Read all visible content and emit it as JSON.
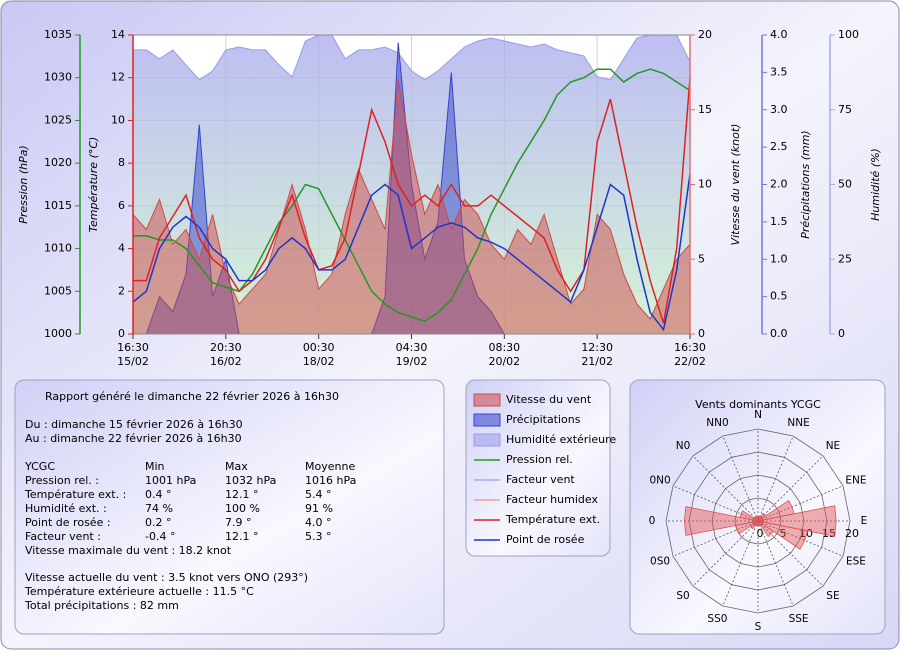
{
  "chart_data": [
    {
      "type": "multiaxis",
      "x": [
        "15/02 16:30",
        "15/02 20:30",
        "16/02 00:30",
        "16/02 04:30",
        "16/02 08:30",
        "16/02 12:30",
        "16/02 16:30",
        "16/02 20:30",
        "17/02 00:30",
        "17/02 04:30",
        "17/02 08:30",
        "17/02 12:30",
        "17/02 16:30",
        "17/02 20:30",
        "18/02 00:30",
        "18/02 04:30",
        "18/02 08:30",
        "18/02 12:30",
        "18/02 16:30",
        "18/02 20:30",
        "19/02 00:30",
        "19/02 04:30",
        "19/02 08:30",
        "19/02 12:30",
        "19/02 16:30",
        "19/02 20:30",
        "20/02 00:30",
        "20/02 04:30",
        "20/02 08:30",
        "20/02 12:30",
        "20/02 16:30",
        "20/02 20:30",
        "21/02 00:30",
        "21/02 04:30",
        "21/02 08:30",
        "21/02 12:30",
        "21/02 16:30",
        "21/02 20:30",
        "22/02 00:30",
        "22/02 04:30",
        "22/02 08:30",
        "22/02 12:30",
        "22/02 16:30"
      ],
      "xticks": [
        {
          "time": "16:30",
          "date": "15/02"
        },
        {
          "time": "20:30",
          "date": "16/02"
        },
        {
          "time": "00:30",
          "date": "18/02"
        },
        {
          "time": "04:30",
          "date": "19/02"
        },
        {
          "time": "08:30",
          "date": "20/02"
        },
        {
          "time": "12:30",
          "date": "21/02"
        },
        {
          "time": "16:30",
          "date": "22/02"
        }
      ],
      "grid": true,
      "axes": [
        {
          "label": "Pression (hPa)",
          "color": "#229922",
          "lim": [
            1000,
            1035
          ],
          "ticks": [
            1000,
            1005,
            1010,
            1015,
            1020,
            1025,
            1030,
            1035
          ]
        },
        {
          "label": "Température (°C)",
          "color": "#dd2222",
          "lim": [
            0,
            14
          ],
          "ticks": [
            0,
            2,
            4,
            6,
            8,
            10,
            12,
            14
          ]
        },
        {
          "label": "Vitesse du vent (knot)",
          "color": "#e07070",
          "lim": [
            0,
            20
          ],
          "ticks": [
            0,
            5,
            10,
            15,
            20
          ]
        },
        {
          "label": "Précipitations (mm)",
          "color": "#7777dd",
          "lim": [
            0,
            4
          ],
          "ticks": [
            {
              "value": 0,
              "label": "0.0"
            },
            {
              "value": 0.5,
              "label": "0.5"
            },
            {
              "value": 1,
              "label": "1.0"
            },
            {
              "value": 1.5,
              "label": "1.5"
            },
            {
              "value": 2,
              "label": "2.0"
            },
            {
              "value": 2.5,
              "label": "2.5"
            },
            {
              "value": 3,
              "label": "3.0"
            },
            {
              "value": 3.5,
              "label": "3.5"
            },
            {
              "value": 4,
              "label": "4.0"
            }
          ]
        },
        {
          "label": "Humidité (%)",
          "color": "#aaaaee",
          "lim": [
            0,
            100
          ],
          "ticks": [
            0,
            25,
            50,
            75,
            100
          ]
        }
      ],
      "series": [
        {
          "name": "Vitesse du vent",
          "color": "#d04848",
          "style": "area",
          "axis": 2,
          "values": [
            8,
            7,
            9,
            6,
            7,
            5,
            8,
            4,
            2,
            3,
            4,
            7,
            10,
            7,
            3,
            4,
            8,
            11,
            9,
            7,
            17,
            12,
            8,
            10,
            7,
            9,
            8,
            6,
            5,
            7,
            6,
            8,
            5,
            2,
            3,
            8,
            7,
            4,
            2,
            1,
            3,
            5,
            6
          ]
        },
        {
          "name": "Précipitations",
          "color": "#3344cc",
          "style": "area",
          "axis": 3,
          "values": [
            0,
            0,
            0.5,
            0.3,
            0.8,
            2.8,
            0.5,
            1,
            0,
            0,
            0,
            0,
            0,
            0,
            0,
            0,
            0,
            0,
            0,
            0.5,
            3.9,
            2,
            1,
            1.5,
            3.5,
            1,
            0.5,
            0.3,
            0,
            0,
            0,
            0,
            0,
            0,
            0,
            0,
            0,
            0,
            0,
            0,
            0,
            0,
            0
          ]
        },
        {
          "name": "Humidité extérieure",
          "color": "#9a9ae8",
          "style": "area",
          "axis": 4,
          "values": [
            95,
            95,
            92,
            95,
            90,
            85,
            88,
            95,
            96,
            95,
            95,
            90,
            86,
            98,
            100,
            100,
            92,
            95,
            95,
            96,
            94,
            88,
            85,
            88,
            92,
            96,
            98,
            99,
            98,
            97,
            96,
            97,
            95,
            94,
            93,
            86,
            85,
            92,
            99,
            100,
            100,
            100,
            91
          ]
        },
        {
          "name": "Pression rel.",
          "color": "#229922",
          "style": "line",
          "axis": 0,
          "values": [
            1011.5,
            1011.5,
            1011,
            1011,
            1010,
            1008,
            1006,
            1005.5,
            1005,
            1007,
            1010,
            1013,
            1015,
            1017.5,
            1017,
            1014,
            1011,
            1008,
            1005,
            1003.5,
            1002.5,
            1002,
            1001.5,
            1002.5,
            1004,
            1007,
            1010,
            1014,
            1017,
            1020,
            1022.5,
            1025,
            1028,
            1029.5,
            1030,
            1031,
            1031,
            1029.5,
            1030.5,
            1031,
            1030.5,
            1029.5,
            1028.5
          ]
        },
        {
          "name": "Facteur vent",
          "color": "#aaaaee",
          "style": "line",
          "axis": 1
        },
        {
          "name": "Facteur humidex",
          "color": "#f0a0a0",
          "style": "line",
          "axis": 1
        },
        {
          "name": "Température ext.",
          "color": "#dd2222",
          "style": "line",
          "axis": 1,
          "values": [
            2.5,
            2.5,
            4.5,
            5.5,
            6.5,
            4.5,
            3.5,
            3,
            2,
            2.5,
            3.5,
            5,
            6.5,
            4.5,
            3,
            3.2,
            4.5,
            7.5,
            10.5,
            9,
            7,
            6,
            6.5,
            6,
            7,
            6,
            6,
            6.5,
            6,
            5.5,
            5,
            4.5,
            3,
            2,
            3,
            9,
            11,
            8,
            5,
            2.5,
            0.5,
            4,
            12
          ]
        },
        {
          "name": "Point de rosée",
          "color": "#2233cc",
          "style": "line",
          "axis": 1,
          "values": [
            1.5,
            2,
            4,
            5,
            5.5,
            5,
            4,
            3.5,
            2.5,
            2.5,
            3,
            4,
            4.5,
            4,
            3,
            3,
            3.5,
            5,
            6.5,
            7,
            6.5,
            4,
            4.5,
            5,
            5.2,
            5,
            4.5,
            4.3,
            4,
            3.5,
            3,
            2.5,
            2,
            1.5,
            3,
            5,
            7,
            6.5,
            3.5,
            1,
            0.2,
            3,
            7.5
          ]
        }
      ]
    },
    {
      "type": "windrose",
      "title": "Vents dominants YCGC",
      "color": "#e05050",
      "categories": [
        "N",
        "NNE",
        "NE",
        "ENE",
        "E",
        "ESE",
        "SE",
        "SSE",
        "S",
        "SS0",
        "S0",
        "0S0",
        "0",
        "0N0",
        "N0",
        "NN0"
      ],
      "values": [
        1,
        1,
        2,
        8,
        17,
        11,
        4,
        1,
        1,
        1,
        2,
        5,
        16,
        4,
        1,
        1
      ],
      "rlim": [
        0,
        20
      ],
      "rticks": [
        0,
        5,
        10,
        15,
        20
      ]
    }
  ],
  "report": {
    "title": "Rapport généré le dimanche 22 février 2026 à 16h30",
    "period": [
      "Du : dimanche 15 février 2026 à 16h30",
      "Au : dimanche 22 février 2026 à 16h30"
    ],
    "table": {
      "header": [
        "YCGC",
        "Min",
        "Max",
        "Moyenne"
      ],
      "rows": [
        [
          "Pression rel. :",
          "1001 hPa",
          "1032 hPa",
          "1016 hPa"
        ],
        [
          "Température ext. :",
          "0.4 °",
          "12.1 °",
          "5.4 °"
        ],
        [
          "Humidité ext. :",
          "74 %",
          "100 %",
          "91 %"
        ],
        [
          "Point de rosée :",
          "0.2 °",
          "7.9 °",
          "4.0 °"
        ],
        [
          "Facteur vent :",
          "-0.4 °",
          "12.1 °",
          "5.3 °"
        ]
      ]
    },
    "max_wind": "Vitesse maximale du vent : 18.2 knot",
    "current": [
      "Vitesse actuelle du vent : 3.5 knot vers  ONO (293°)",
      "Température extérieure actuelle :  11.5 °C",
      "Total précipitations : 82 mm"
    ]
  }
}
